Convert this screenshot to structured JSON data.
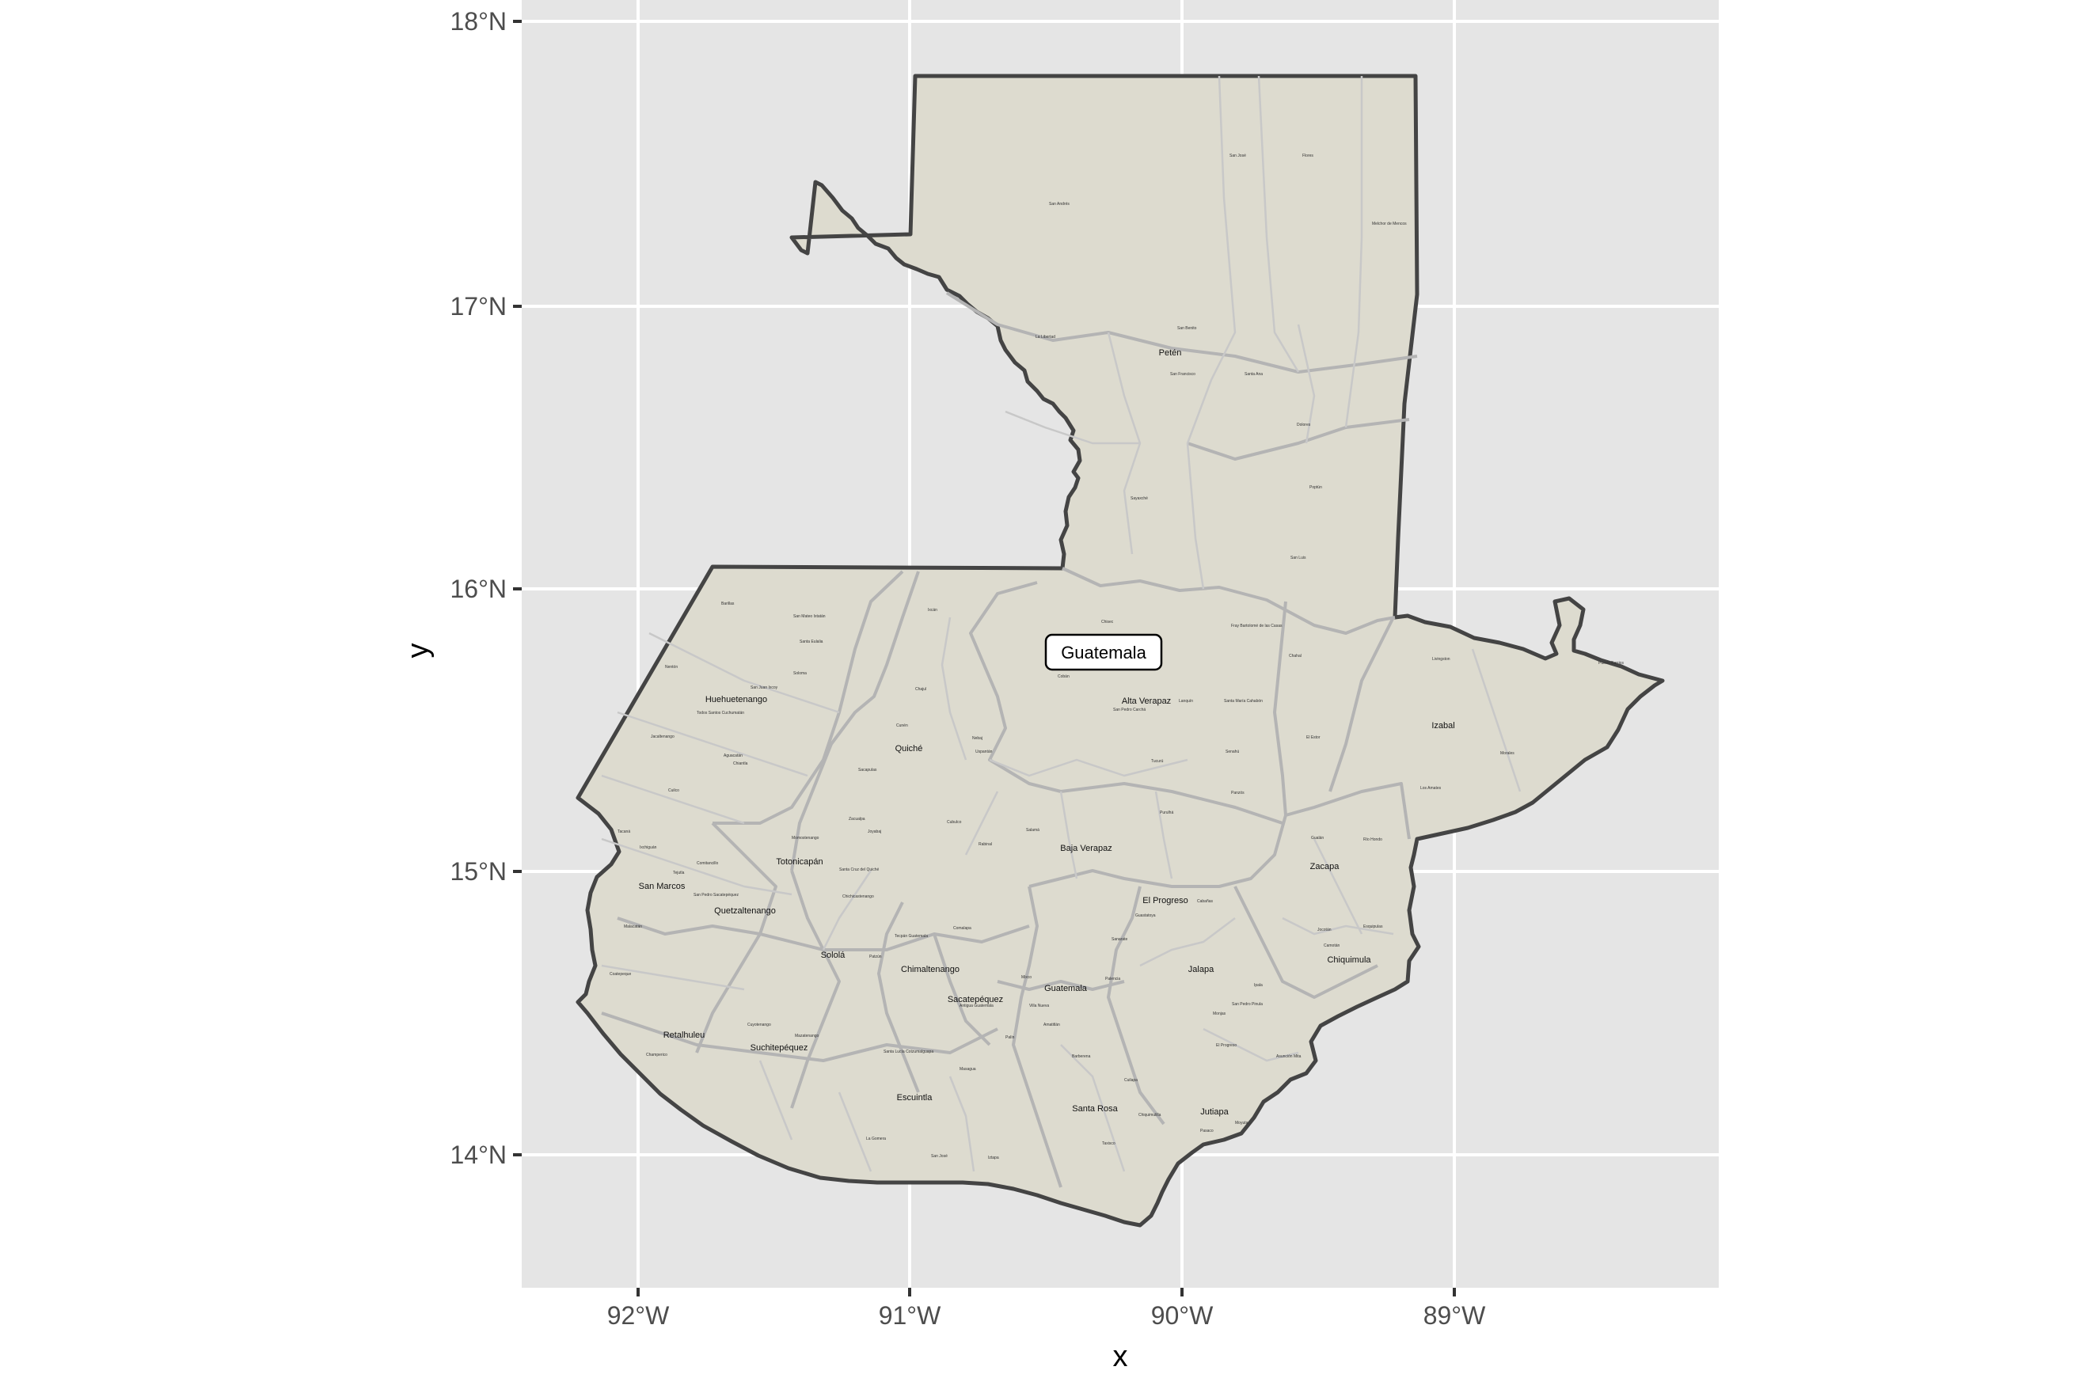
{
  "map": {
    "country_label": "Guatemala",
    "x_axis_title": "x",
    "y_axis_title": "y",
    "lat_ticks": [
      "14°N",
      "15°N",
      "16°N",
      "17°N",
      "18°N"
    ],
    "lon_ticks": [
      "92°W",
      "91°W",
      "90°W",
      "89°W"
    ],
    "colors": {
      "panel": "#e5e5e5",
      "land": "#dddbcf",
      "country_border": "#444444",
      "department_border": "#b4b4b4",
      "municipality_border": "#c8c8c8",
      "gridline": "#ffffff"
    }
  },
  "departments": [
    {
      "name": "Petén"
    },
    {
      "name": "Huehuetenango"
    },
    {
      "name": "Quiché"
    },
    {
      "name": "Alta Verapaz"
    },
    {
      "name": "Izabal"
    },
    {
      "name": "Baja Verapaz"
    },
    {
      "name": "Totonicapán"
    },
    {
      "name": "San Marcos"
    },
    {
      "name": "Quetzaltenango"
    },
    {
      "name": "Sololá"
    },
    {
      "name": "Chimaltenango"
    },
    {
      "name": "Sacatepéquez"
    },
    {
      "name": "Guatemala"
    },
    {
      "name": "El Progreso"
    },
    {
      "name": "Zacapa"
    },
    {
      "name": "Chiquimula"
    },
    {
      "name": "Jalapa"
    },
    {
      "name": "Retalhuleu"
    },
    {
      "name": "Suchitepéquez"
    },
    {
      "name": "Escuintla"
    },
    {
      "name": "Santa Rosa"
    },
    {
      "name": "Jutiapa"
    }
  ],
  "municipalities": [
    {
      "name": "San José"
    },
    {
      "name": "Flores"
    },
    {
      "name": "San Andrés"
    },
    {
      "name": "Melchor de Mencos"
    },
    {
      "name": "San Benito"
    },
    {
      "name": "La Libertad"
    },
    {
      "name": "San Francisco"
    },
    {
      "name": "Santa Ana"
    },
    {
      "name": "Dolores"
    },
    {
      "name": "Sayaxché"
    },
    {
      "name": "Poptún"
    },
    {
      "name": "San Luis"
    },
    {
      "name": "Chisec"
    },
    {
      "name": "Fray Bartolomé de las Casas"
    },
    {
      "name": "Chahal"
    },
    {
      "name": "Livingston"
    },
    {
      "name": "Puerto Barrios"
    },
    {
      "name": "Cobán"
    },
    {
      "name": "Lanquín"
    },
    {
      "name": "Santa María Cahabón"
    },
    {
      "name": "San Pedro Carchá"
    },
    {
      "name": "Senahú"
    },
    {
      "name": "El Estor"
    },
    {
      "name": "Morales"
    },
    {
      "name": "Los Amates"
    },
    {
      "name": "Tucurú"
    },
    {
      "name": "Panzós"
    },
    {
      "name": "Purulhá"
    },
    {
      "name": "Nebaj"
    },
    {
      "name": "Uspantán"
    },
    {
      "name": "Chajul"
    },
    {
      "name": "Ixcán"
    },
    {
      "name": "Barillas"
    },
    {
      "name": "Nentón"
    },
    {
      "name": "San Mateo Ixtatán"
    },
    {
      "name": "Salamá"
    },
    {
      "name": "Rabinal"
    },
    {
      "name": "Cubulco"
    },
    {
      "name": "Joyabaj"
    },
    {
      "name": "Zacualpa"
    },
    {
      "name": "Sacapulas"
    },
    {
      "name": "Cunén"
    },
    {
      "name": "Chichicastenango"
    },
    {
      "name": "Patzún"
    },
    {
      "name": "Tecpán Guatemala"
    },
    {
      "name": "Comalapa"
    },
    {
      "name": "Antigua Guatemala"
    },
    {
      "name": "Mixco"
    },
    {
      "name": "Villa Nueva"
    },
    {
      "name": "Amatitlán"
    },
    {
      "name": "Palencia"
    },
    {
      "name": "Sanarate"
    },
    {
      "name": "Guastatoya"
    },
    {
      "name": "Cabañas"
    },
    {
      "name": "Gualán"
    },
    {
      "name": "Río Hondo"
    },
    {
      "name": "Esquipulas"
    },
    {
      "name": "Jocotán"
    },
    {
      "name": "Camotán"
    },
    {
      "name": "Ipala"
    },
    {
      "name": "San Pedro Pinula"
    },
    {
      "name": "Monjas"
    },
    {
      "name": "Asunción Mita"
    },
    {
      "name": "El Progreso"
    },
    {
      "name": "Moyuta"
    },
    {
      "name": "Pasaco"
    },
    {
      "name": "Chiquimulilla"
    },
    {
      "name": "Taxisco"
    },
    {
      "name": "Barberena"
    },
    {
      "name": "Cuilapa"
    },
    {
      "name": "Santa Lucía Cotzumalguapa"
    },
    {
      "name": "La Gomera"
    },
    {
      "name": "San José"
    },
    {
      "name": "Iztapa"
    },
    {
      "name": "Masagua"
    },
    {
      "name": "Palín"
    },
    {
      "name": "Mazatenango"
    },
    {
      "name": "Cuyotenango"
    },
    {
      "name": "Champerico"
    },
    {
      "name": "Coatepeque"
    },
    {
      "name": "Malacatán"
    },
    {
      "name": "Tacaná"
    },
    {
      "name": "Ixchiguán"
    },
    {
      "name": "Tejutla"
    },
    {
      "name": "Comitancillo"
    },
    {
      "name": "San Pedro Sacatepéquez"
    },
    {
      "name": "Momostenango"
    },
    {
      "name": "Santa Cruz del Quiché"
    },
    {
      "name": "Jacaltenango"
    },
    {
      "name": "Cuilco"
    },
    {
      "name": "Chiantla"
    },
    {
      "name": "Todos Santos Cuchumatán"
    },
    {
      "name": "Santa Eulalia"
    },
    {
      "name": "Soloma"
    },
    {
      "name": "San Juan Ixcoy"
    },
    {
      "name": "Aguacatán"
    }
  ]
}
